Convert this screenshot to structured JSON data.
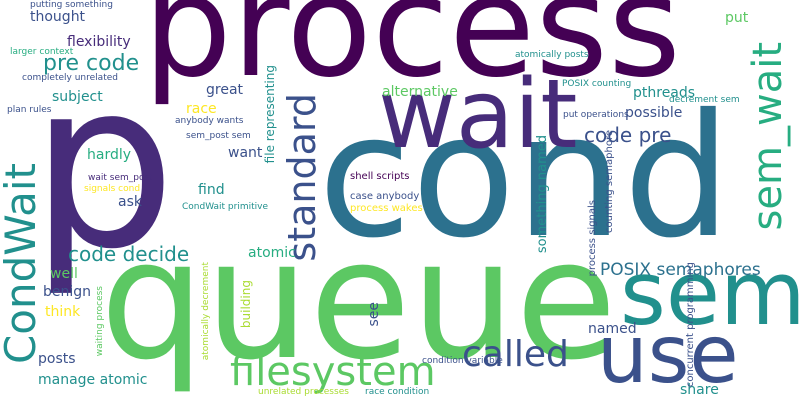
{
  "palette": {
    "dark_purple": "#440154",
    "purple": "#472c7a",
    "indigo": "#3b518b",
    "blue": "#2c718e",
    "teal": "#21908d",
    "green_teal": "#27ad81",
    "green": "#5cc863",
    "light_green": "#aadc32",
    "yellow": "#fde725"
  },
  "words": [
    "process",
    "cond",
    "queue",
    "wait",
    "p",
    "sem",
    "use",
    "sem_wait",
    "called",
    "filesystem",
    "CondWait",
    "standard",
    "pre code",
    "code pre",
    "code decide",
    "POSIX semaphores",
    "alternative",
    "flexibility",
    "thought",
    "subject",
    "great",
    "race",
    "hardly",
    "want",
    "find",
    "ask",
    "atomic",
    "well",
    "benign",
    "think",
    "posts",
    "manage atomic",
    "named",
    "see",
    "share",
    "put",
    "pthreads",
    "possible",
    "something named",
    "file representing",
    "building",
    "concurrent programming",
    "counting semaphore",
    "process signals",
    "shell scripts",
    "case anybody",
    "process wakes",
    "wait sem_post",
    "signals cond",
    "CondWait primitive",
    "sem_post sem",
    "anybody wants",
    "putting something",
    "larger context",
    "completely unrelated",
    "plan rules",
    "atomically posts",
    "POSIX counting",
    "decrement sem",
    "put operations",
    "waiting process",
    "atomically decrement",
    "unrelated processes",
    "race condition",
    "condition variable"
  ]
}
